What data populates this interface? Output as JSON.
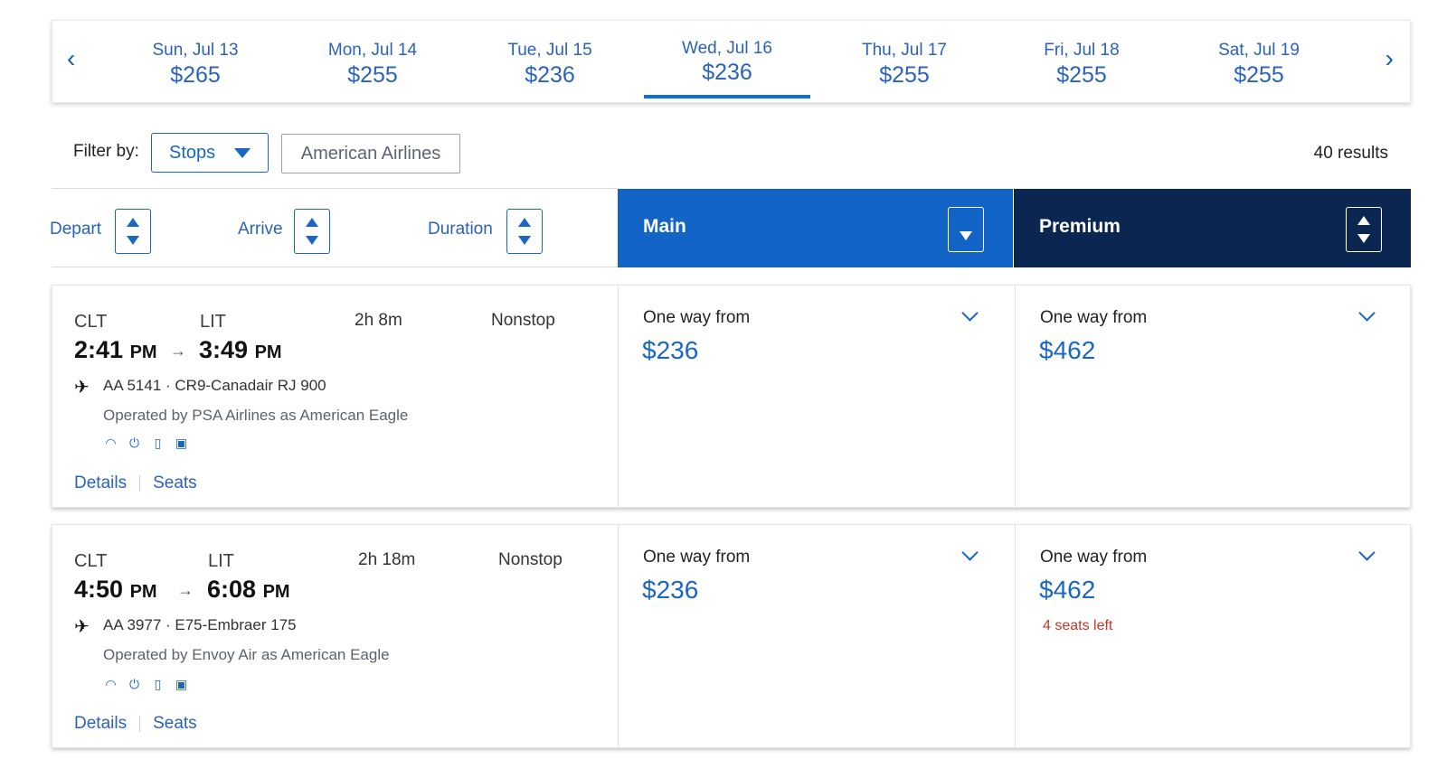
{
  "date_nav": {
    "prev_icon": "chevron-left-icon",
    "next_icon": "chevron-right-icon",
    "prev_glyph": "‹",
    "next_glyph": "›",
    "dates": [
      {
        "label": "Sun, Jul 13",
        "price": "$265",
        "selected": false
      },
      {
        "label": "Mon, Jul 14",
        "price": "$255",
        "selected": false
      },
      {
        "label": "Tue, Jul 15",
        "price": "$236",
        "selected": false
      },
      {
        "label": "Wed, Jul 16",
        "price": "$236",
        "selected": true
      },
      {
        "label": "Thu, Jul 17",
        "price": "$255",
        "selected": false
      },
      {
        "label": "Fri, Jul 18",
        "price": "$255",
        "selected": false
      },
      {
        "label": "Sat, Jul 19",
        "price": "$255",
        "selected": false
      }
    ]
  },
  "filters": {
    "label": "Filter by:",
    "stops": "Stops",
    "airline": "American Airlines",
    "results": "40 results"
  },
  "sort": {
    "depart": "Depart",
    "arrive": "Arrive",
    "duration": "Duration"
  },
  "cabins": {
    "main": "Main",
    "premium": "Premium"
  },
  "colors": {
    "accent": "#1a66c4",
    "main_header": "#1264c7",
    "premium_header": "#0b2650",
    "warning": "#c0392b"
  },
  "flights": [
    {
      "origin": "CLT",
      "destination": "LIT",
      "depart_time": "2:41",
      "depart_ampm": "PM",
      "arrive_time": "3:49",
      "arrive_ampm": "PM",
      "arrow": "→",
      "duration": "2h 8m",
      "stops": "Nonstop",
      "flight_info": "AA 5141 · CR9-Canadair RJ 900",
      "operated_by": "Operated by PSA Airlines as American Eagle",
      "amenities": [
        "wifi-icon",
        "power-icon",
        "usb-icon",
        "entertainment-icon"
      ],
      "details_label": "Details",
      "seats_label": "Seats",
      "main_fare": {
        "from_label": "One way from",
        "price": "$236"
      },
      "premium_fare": {
        "from_label": "One way from",
        "price": "$462",
        "seats_left": ""
      }
    },
    {
      "origin": "CLT",
      "destination": "LIT",
      "depart_time": "4:50",
      "depart_ampm": "PM",
      "arrive_time": "6:08",
      "arrive_ampm": "PM",
      "arrow": "→",
      "duration": "2h 18m",
      "stops": "Nonstop",
      "flight_info": "AA 3977 · E75-Embraer 175",
      "operated_by": "Operated by Envoy Air as American Eagle",
      "amenities": [
        "wifi-icon",
        "power-icon",
        "usb-icon",
        "entertainment-icon"
      ],
      "details_label": "Details",
      "seats_label": "Seats",
      "main_fare": {
        "from_label": "One way from",
        "price": "$236"
      },
      "premium_fare": {
        "from_label": "One way from",
        "price": "$462",
        "seats_left": "4 seats left"
      }
    }
  ]
}
